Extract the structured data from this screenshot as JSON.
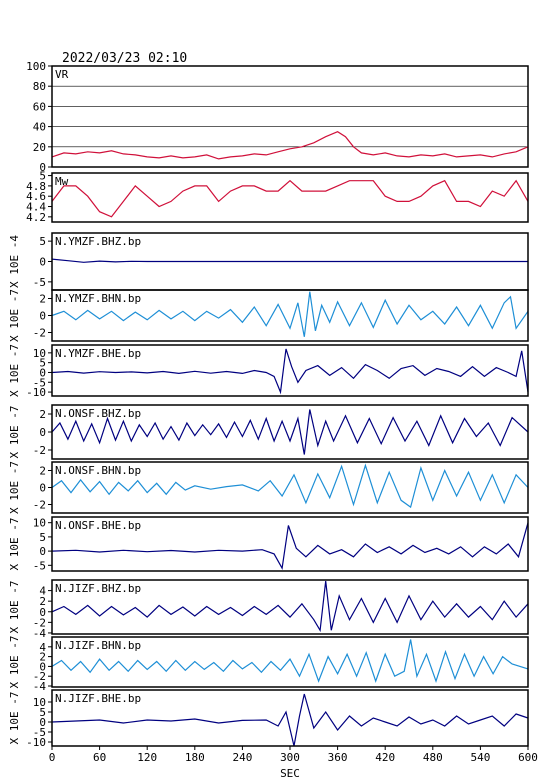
{
  "header": {
    "datetime": "2022/03/23 02:10"
  },
  "x_axis": {
    "label": "SEC",
    "range": [
      0,
      600
    ],
    "ticks": [
      0,
      60,
      120,
      180,
      240,
      300,
      360,
      420,
      480,
      540,
      600
    ]
  },
  "colors": {
    "frame": "#000000",
    "vr": "#d0103a",
    "mw": "#d0103a",
    "dark": "#000080",
    "light": "#1e8fd6"
  },
  "chart_data": [
    {
      "type": "line",
      "id": "vr",
      "label": "VR",
      "ylim": [
        0,
        100
      ],
      "yticks": [
        0,
        20,
        40,
        60,
        80,
        100
      ],
      "grid": true,
      "color": "#d0103a",
      "x": [
        0,
        15,
        30,
        45,
        60,
        75,
        90,
        105,
        120,
        135,
        150,
        165,
        180,
        195,
        210,
        225,
        240,
        255,
        270,
        285,
        300,
        315,
        330,
        345,
        360,
        370,
        380,
        390,
        405,
        420,
        435,
        450,
        465,
        480,
        495,
        510,
        525,
        540,
        555,
        570,
        585,
        600
      ],
      "y": [
        10,
        14,
        13,
        15,
        14,
        16,
        13,
        12,
        10,
        9,
        11,
        9,
        10,
        12,
        8,
        10,
        11,
        13,
        12,
        15,
        18,
        20,
        24,
        30,
        35,
        30,
        20,
        14,
        12,
        14,
        11,
        10,
        12,
        11,
        13,
        10,
        11,
        12,
        10,
        13,
        15,
        20
      ]
    },
    {
      "type": "line",
      "id": "mw",
      "label": "Mw",
      "ylim": [
        4.1,
        5.05
      ],
      "yticks": [
        4.2,
        4.4,
        4.6,
        4.8,
        5.0
      ],
      "color": "#d0103a",
      "x": [
        0,
        15,
        30,
        45,
        60,
        75,
        90,
        105,
        120,
        135,
        150,
        165,
        180,
        195,
        210,
        225,
        240,
        255,
        270,
        285,
        300,
        315,
        330,
        345,
        360,
        375,
        390,
        405,
        420,
        435,
        450,
        465,
        480,
        495,
        510,
        525,
        540,
        555,
        570,
        585,
        600
      ],
      "y": [
        4.5,
        4.8,
        4.8,
        4.6,
        4.3,
        4.2,
        4.5,
        4.8,
        4.6,
        4.4,
        4.5,
        4.7,
        4.8,
        4.8,
        4.5,
        4.7,
        4.8,
        4.8,
        4.7,
        4.7,
        4.9,
        4.7,
        4.7,
        4.7,
        4.8,
        4.9,
        4.9,
        4.9,
        4.6,
        4.5,
        4.5,
        4.6,
        4.8,
        4.9,
        4.5,
        4.5,
        4.4,
        4.7,
        4.6,
        4.9,
        4.5
      ]
    },
    {
      "type": "line",
      "id": "ymzf-bhz",
      "label": "N.YMZF.BHZ.bp",
      "ylabel": "X 10E -4",
      "ylim": [
        -7,
        7
      ],
      "yticks": [
        -5,
        0,
        5
      ],
      "color": "#000080",
      "x": [
        0,
        20,
        40,
        60,
        80,
        100,
        120,
        600
      ],
      "y": [
        0.6,
        0.2,
        -0.2,
        0.1,
        -0.1,
        0.05,
        0,
        0
      ]
    },
    {
      "type": "line",
      "id": "ymzf-bhn",
      "label": "N.YMZF.BHN.bp",
      "ylabel": "X 10E -7",
      "ylim": [
        -3,
        3
      ],
      "yticks": [
        -2,
        0,
        2
      ],
      "color": "#1e8fd6",
      "x": [
        0,
        15,
        30,
        45,
        60,
        75,
        90,
        105,
        120,
        135,
        150,
        165,
        180,
        195,
        210,
        225,
        240,
        255,
        270,
        285,
        300,
        310,
        318,
        325,
        332,
        340,
        350,
        360,
        375,
        390,
        405,
        420,
        435,
        450,
        465,
        480,
        495,
        510,
        525,
        540,
        555,
        570,
        578,
        585,
        600
      ],
      "y": [
        0,
        0.5,
        -0.5,
        0.6,
        -0.4,
        0.5,
        -0.6,
        0.4,
        -0.5,
        0.6,
        -0.4,
        0.5,
        -0.6,
        0.5,
        -0.3,
        0.7,
        -0.8,
        1.0,
        -1.2,
        1.3,
        -1.5,
        1.5,
        -2.5,
        2.8,
        -1.8,
        1.2,
        -0.8,
        1.6,
        -1.2,
        1.5,
        -1.4,
        1.8,
        -1.0,
        1.2,
        -0.5,
        0.5,
        -1.0,
        1.0,
        -1.2,
        1.2,
        -1.5,
        1.5,
        2.2,
        -1.5,
        0.5
      ]
    },
    {
      "type": "line",
      "id": "ymzf-bhe",
      "label": "N.YMZF.BHE.bp",
      "ylabel": "X 10E -7",
      "ylim": [
        -12,
        14
      ],
      "yticks": [
        -10,
        -5,
        0,
        5,
        10
      ],
      "color": "#000080",
      "x": [
        0,
        20,
        40,
        60,
        80,
        100,
        120,
        140,
        160,
        180,
        200,
        220,
        240,
        255,
        270,
        280,
        288,
        295,
        302,
        310,
        320,
        335,
        350,
        365,
        380,
        395,
        410,
        425,
        440,
        455,
        470,
        485,
        500,
        515,
        530,
        545,
        560,
        575,
        585,
        592,
        600
      ],
      "y": [
        0,
        0.5,
        -0.3,
        0.4,
        0,
        0.3,
        -0.2,
        0.5,
        -0.5,
        0.6,
        -0.4,
        0.5,
        -0.5,
        1.0,
        0,
        -2.0,
        -10.0,
        12.0,
        3.0,
        -5.0,
        1.0,
        3.5,
        -1.5,
        2.5,
        -3.0,
        4.0,
        1.0,
        -3.0,
        2.0,
        3.5,
        -1.5,
        2.0,
        0.5,
        -2.0,
        3.0,
        -2.0,
        2.5,
        0,
        -2.0,
        11.0,
        -10.0
      ]
    },
    {
      "type": "line",
      "id": "onsf-bhz",
      "label": "N.ONSF.BHZ.bp",
      "ylabel": "X 10E -7",
      "ylim": [
        -3,
        3
      ],
      "yticks": [
        -2,
        0,
        2
      ],
      "color": "#000080",
      "x": [
        0,
        10,
        20,
        30,
        40,
        50,
        60,
        70,
        80,
        90,
        100,
        110,
        120,
        130,
        140,
        150,
        160,
        170,
        180,
        190,
        200,
        210,
        220,
        230,
        240,
        250,
        260,
        270,
        280,
        290,
        300,
        310,
        318,
        325,
        335,
        345,
        355,
        370,
        385,
        400,
        415,
        430,
        445,
        460,
        475,
        490,
        505,
        520,
        535,
        550,
        565,
        580,
        600
      ],
      "y": [
        0,
        1.0,
        -0.8,
        1.2,
        -1.0,
        0.9,
        -1.2,
        1.5,
        -0.9,
        1.2,
        -1.0,
        0.8,
        -0.5,
        1.0,
        -0.8,
        0.6,
        -0.9,
        1.0,
        -0.4,
        0.8,
        -0.3,
        0.9,
        -0.6,
        1.1,
        -0.5,
        1.3,
        -0.8,
        1.5,
        -1.0,
        1.2,
        -1.0,
        1.5,
        -2.5,
        2.5,
        -1.5,
        1.2,
        -1.0,
        1.8,
        -1.2,
        1.5,
        -1.3,
        1.6,
        -1.0,
        1.2,
        -1.5,
        1.8,
        -1.2,
        1.5,
        -0.5,
        1.0,
        -1.5,
        1.6,
        0
      ]
    },
    {
      "type": "line",
      "id": "onsf-bhn",
      "label": "N.ONSF.BHN.bp",
      "ylabel": "X 10E -7",
      "ylim": [
        -3,
        3
      ],
      "yticks": [
        -2,
        0,
        2
      ],
      "color": "#1e8fd6",
      "x": [
        0,
        12,
        24,
        36,
        48,
        60,
        72,
        84,
        96,
        108,
        120,
        132,
        144,
        156,
        168,
        180,
        200,
        220,
        240,
        260,
        275,
        290,
        305,
        320,
        335,
        350,
        365,
        380,
        395,
        410,
        425,
        440,
        452,
        465,
        480,
        495,
        510,
        525,
        540,
        555,
        570,
        585,
        600
      ],
      "y": [
        0,
        0.8,
        -0.6,
        0.9,
        -0.5,
        0.7,
        -0.8,
        0.6,
        -0.4,
        0.8,
        -0.6,
        0.5,
        -0.8,
        0.6,
        -0.3,
        0.2,
        -0.2,
        0.1,
        0.3,
        -0.4,
        0.8,
        -1.0,
        1.5,
        -1.8,
        1.6,
        -1.2,
        2.5,
        -2.0,
        2.6,
        -1.8,
        1.8,
        -1.5,
        -2.3,
        2.3,
        -1.5,
        2.0,
        -1.0,
        1.8,
        -1.5,
        1.5,
        -1.8,
        1.5,
        0
      ]
    },
    {
      "type": "line",
      "id": "onsf-bhe",
      "label": "N.ONSF.BHE.bp",
      "ylabel": "X 10E -7",
      "ylim": [
        -7,
        12
      ],
      "yticks": [
        -5,
        0,
        5,
        10
      ],
      "color": "#000080",
      "x": [
        0,
        30,
        60,
        90,
        120,
        150,
        180,
        210,
        240,
        265,
        280,
        290,
        298,
        308,
        320,
        335,
        350,
        365,
        380,
        395,
        410,
        425,
        440,
        455,
        470,
        485,
        500,
        515,
        530,
        545,
        560,
        575,
        588,
        600
      ],
      "y": [
        0,
        0.3,
        -0.3,
        0.3,
        -0.2,
        0.2,
        -0.3,
        0.3,
        0,
        0.5,
        -1.0,
        -6.0,
        9.0,
        1.0,
        -2.0,
        2.0,
        -1.0,
        0.5,
        -2.0,
        2.5,
        -0.5,
        1.5,
        -1.0,
        2.0,
        -0.5,
        1.0,
        -1.0,
        1.5,
        -2.0,
        1.5,
        -1.0,
        2.5,
        -2.0,
        10.0
      ]
    },
    {
      "type": "line",
      "id": "jizf-bhz",
      "label": "N.JIZF.BHZ.bp",
      "ylabel": "X 10E -7",
      "ylim": [
        -4.2,
        6
      ],
      "yticks": [
        -4,
        -2,
        0,
        2,
        4
      ],
      "color": "#000080",
      "x": [
        0,
        15,
        30,
        45,
        60,
        75,
        90,
        105,
        120,
        135,
        150,
        165,
        180,
        195,
        210,
        225,
        240,
        255,
        270,
        285,
        300,
        315,
        330,
        338,
        345,
        352,
        362,
        375,
        390,
        405,
        420,
        435,
        450,
        465,
        480,
        495,
        510,
        525,
        540,
        555,
        570,
        585,
        600
      ],
      "y": [
        0,
        1.0,
        -0.5,
        1.2,
        -0.8,
        1.0,
        -0.6,
        0.8,
        -1.0,
        1.2,
        -0.5,
        0.9,
        -0.8,
        1.0,
        -0.5,
        0.8,
        -0.7,
        1.0,
        -0.5,
        1.2,
        -1.0,
        1.5,
        -1.5,
        -3.5,
        5.8,
        -3.5,
        3.0,
        -1.5,
        2.5,
        -2.0,
        2.5,
        -2.0,
        3.0,
        -1.5,
        2.0,
        -1.0,
        1.5,
        -1.0,
        1.0,
        -1.5,
        2.0,
        -1.0,
        1.5
      ]
    },
    {
      "type": "line",
      "id": "jizf-bhn",
      "label": "N.JIZF.BHN.bp",
      "ylabel": "X 10E -7",
      "ylim": [
        -4.2,
        6
      ],
      "yticks": [
        -4,
        -2,
        0,
        2,
        4
      ],
      "color": "#1e8fd6",
      "x": [
        0,
        12,
        24,
        36,
        48,
        60,
        72,
        84,
        96,
        108,
        120,
        132,
        144,
        156,
        168,
        180,
        192,
        204,
        216,
        228,
        240,
        252,
        264,
        276,
        288,
        300,
        312,
        324,
        336,
        348,
        360,
        372,
        384,
        396,
        408,
        420,
        432,
        444,
        452,
        460,
        472,
        484,
        496,
        508,
        520,
        532,
        544,
        556,
        568,
        580,
        600
      ],
      "y": [
        0,
        1.2,
        -0.8,
        1.0,
        -1.2,
        1.5,
        -0.8,
        1.0,
        -1.0,
        1.2,
        -0.6,
        1.0,
        -1.0,
        1.2,
        -0.8,
        1.0,
        -0.6,
        0.8,
        -1.0,
        1.2,
        -0.5,
        0.8,
        -1.2,
        1.0,
        -0.8,
        1.5,
        -2.0,
        2.5,
        -3.0,
        2.0,
        -1.5,
        2.5,
        -2.0,
        2.8,
        -3.0,
        2.5,
        -2.0,
        -1.0,
        5.5,
        -2.0,
        2.5,
        -3.0,
        3.0,
        -2.5,
        2.5,
        -2.0,
        2.0,
        -1.5,
        2.0,
        0.5,
        -0.5
      ]
    },
    {
      "type": "line",
      "id": "jizf-bhe",
      "label": "N.JIZF.BHE.bp",
      "ylabel": "X 10E -7",
      "ylim": [
        -12,
        16
      ],
      "yticks": [
        -10,
        -5,
        0,
        5,
        10
      ],
      "color": "#000080",
      "x": [
        0,
        30,
        60,
        90,
        120,
        150,
        180,
        210,
        240,
        270,
        285,
        295,
        305,
        312,
        318,
        330,
        345,
        360,
        375,
        390,
        405,
        420,
        435,
        450,
        465,
        480,
        495,
        510,
        525,
        540,
        555,
        570,
        585,
        600
      ],
      "y": [
        0,
        0.5,
        1.0,
        -0.5,
        1.0,
        0.5,
        1.5,
        -0.5,
        0.8,
        1.0,
        -2.0,
        5.0,
        -12.0,
        3.0,
        14.0,
        -3.0,
        5.0,
        -4.0,
        3.0,
        -2.0,
        2.0,
        0,
        -2.0,
        2.5,
        -1.0,
        1.0,
        -2.0,
        3.0,
        -1.0,
        1.0,
        3.0,
        -2.0,
        4.0,
        2.0
      ]
    }
  ]
}
